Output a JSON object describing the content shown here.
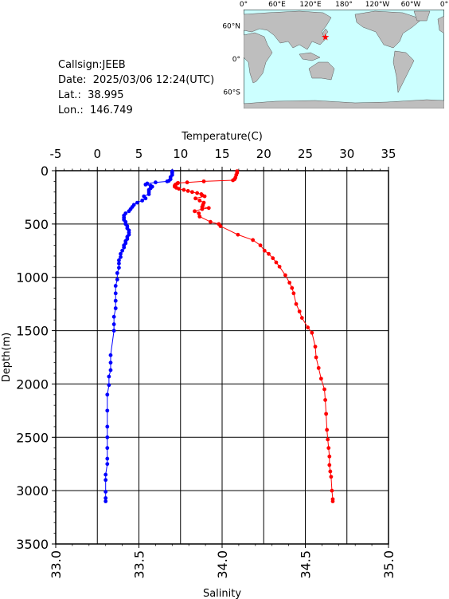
{
  "info": {
    "callsign": "Callsign:JEEB",
    "date": "Date:  2025/03/06 12:24(UTC)",
    "lat": "Lat.:  38.995",
    "lon": "Lon.:  146.749"
  },
  "map": {
    "lon_labels": [
      "0°",
      "60°E",
      "120°E",
      "180°",
      "120°W",
      "60°W",
      "0°"
    ],
    "lat_labels": [
      "60°N",
      "0°",
      "60°S"
    ],
    "ocean_color": "#ccffff",
    "land_color": "#bebebe",
    "station_color": "#ff0000",
    "station": {
      "lat": 38.995,
      "lon": 146.749
    }
  },
  "chart_data": {
    "type": "scatter",
    "title": "",
    "ylabel": "Depth(m)",
    "ylim": [
      3500,
      0
    ],
    "y_ticks": [
      0,
      500,
      1000,
      1500,
      2000,
      2500,
      3000,
      3500
    ],
    "top_axis": {
      "label": "Temperature(C)",
      "lim": [
        -5,
        35
      ],
      "ticks": [
        -5,
        0,
        5,
        10,
        15,
        20,
        25,
        30,
        35
      ]
    },
    "bottom_axis": {
      "label": "Salinity",
      "lim": [
        33.0,
        35.0
      ],
      "ticks": [
        "33.0",
        "33.5",
        "34.0",
        "34.5",
        "35.0"
      ]
    },
    "grid": true,
    "series": [
      {
        "axis": "top",
        "color": "#ff0000",
        "points": [
          [
            16.8,
            5
          ],
          [
            16.8,
            20
          ],
          [
            16.7,
            40
          ],
          [
            16.6,
            65
          ],
          [
            16.5,
            80
          ],
          [
            16.3,
            90
          ],
          [
            12.8,
            100
          ],
          [
            10.8,
            110
          ],
          [
            9.7,
            115
          ],
          [
            9.6,
            120
          ],
          [
            9.4,
            130
          ],
          [
            9.3,
            140
          ],
          [
            9.3,
            150
          ],
          [
            9.5,
            160
          ],
          [
            9.8,
            170
          ],
          [
            10.4,
            180
          ],
          [
            10.9,
            190
          ],
          [
            11.4,
            200
          ],
          [
            12.0,
            210
          ],
          [
            12.5,
            220
          ],
          [
            12.6,
            230
          ],
          [
            12.9,
            240
          ],
          [
            11.8,
            260
          ],
          [
            12.3,
            280
          ],
          [
            12.8,
            300
          ],
          [
            12.7,
            320
          ],
          [
            12.6,
            340
          ],
          [
            13.4,
            350
          ],
          [
            12.6,
            360
          ],
          [
            11.7,
            380
          ],
          [
            12.2,
            400
          ],
          [
            12.3,
            430
          ],
          [
            13.6,
            480
          ],
          [
            14.6,
            500
          ],
          [
            14.8,
            520
          ],
          [
            16.9,
            600
          ],
          [
            18.7,
            650
          ],
          [
            19.6,
            700
          ],
          [
            20.1,
            750
          ],
          [
            20.6,
            780
          ],
          [
            21.1,
            820
          ],
          [
            21.5,
            860
          ],
          [
            21.9,
            900
          ],
          [
            22.6,
            980
          ],
          [
            23.1,
            1050
          ],
          [
            23.4,
            1100
          ],
          [
            23.6,
            1150
          ],
          [
            23.9,
            1250
          ],
          [
            24.3,
            1320
          ],
          [
            24.6,
            1380
          ],
          [
            25.3,
            1470
          ],
          [
            25.8,
            1520
          ],
          [
            26.2,
            1650
          ],
          [
            26.3,
            1750
          ],
          [
            26.6,
            1850
          ],
          [
            26.9,
            1950
          ],
          [
            27.3,
            2050
          ],
          [
            27.4,
            2150
          ],
          [
            27.5,
            2280
          ],
          [
            27.6,
            2430
          ],
          [
            27.7,
            2520
          ],
          [
            27.8,
            2600
          ],
          [
            27.9,
            2680
          ],
          [
            27.9,
            2760
          ],
          [
            28.0,
            2820
          ],
          [
            28.1,
            2870
          ],
          [
            28.2,
            3000
          ],
          [
            28.3,
            3080
          ],
          [
            28.3,
            3100
          ]
        ]
      },
      {
        "axis": "bottom",
        "color": "#0000ff",
        "points": [
          [
            33.7,
            5
          ],
          [
            33.7,
            20
          ],
          [
            33.7,
            40
          ],
          [
            33.69,
            60
          ],
          [
            33.69,
            80
          ],
          [
            33.68,
            95
          ],
          [
            33.67,
            100
          ],
          [
            33.6,
            110
          ],
          [
            33.55,
            120
          ],
          [
            33.54,
            130
          ],
          [
            33.57,
            140
          ],
          [
            33.58,
            150
          ],
          [
            33.57,
            165
          ],
          [
            33.56,
            180
          ],
          [
            33.56,
            200
          ],
          [
            33.56,
            220
          ],
          [
            33.53,
            240
          ],
          [
            33.54,
            260
          ],
          [
            33.52,
            280
          ],
          [
            33.49,
            300
          ],
          [
            33.47,
            320
          ],
          [
            33.46,
            340
          ],
          [
            33.45,
            360
          ],
          [
            33.44,
            380
          ],
          [
            33.42,
            400
          ],
          [
            33.41,
            420
          ],
          [
            33.41,
            440
          ],
          [
            33.41,
            460
          ],
          [
            33.42,
            480
          ],
          [
            33.42,
            500
          ],
          [
            33.43,
            520
          ],
          [
            33.43,
            540
          ],
          [
            33.44,
            560
          ],
          [
            33.44,
            580
          ],
          [
            33.44,
            600
          ],
          [
            33.43,
            620
          ],
          [
            33.43,
            640
          ],
          [
            33.42,
            660
          ],
          [
            33.42,
            680
          ],
          [
            33.41,
            700
          ],
          [
            33.41,
            720
          ],
          [
            33.4,
            750
          ],
          [
            33.39,
            780
          ],
          [
            33.39,
            810
          ],
          [
            33.38,
            840
          ],
          [
            33.38,
            870
          ],
          [
            33.38,
            910
          ],
          [
            33.37,
            960
          ],
          [
            33.37,
            1020
          ],
          [
            33.36,
            1080
          ],
          [
            33.36,
            1150
          ],
          [
            33.36,
            1220
          ],
          [
            33.36,
            1290
          ],
          [
            33.35,
            1370
          ],
          [
            33.35,
            1440
          ],
          [
            33.35,
            1500
          ],
          [
            33.33,
            1730
          ],
          [
            33.33,
            1800
          ],
          [
            33.33,
            1870
          ],
          [
            33.32,
            1930
          ],
          [
            33.32,
            2010
          ],
          [
            33.31,
            2100
          ],
          [
            33.31,
            2250
          ],
          [
            33.31,
            2400
          ],
          [
            33.31,
            2500
          ],
          [
            33.31,
            2600
          ],
          [
            33.31,
            2700
          ],
          [
            33.31,
            2750
          ],
          [
            33.3,
            2850
          ],
          [
            33.3,
            2900
          ],
          [
            33.3,
            3010
          ],
          [
            33.3,
            3070
          ],
          [
            33.3,
            3100
          ]
        ]
      }
    ]
  }
}
